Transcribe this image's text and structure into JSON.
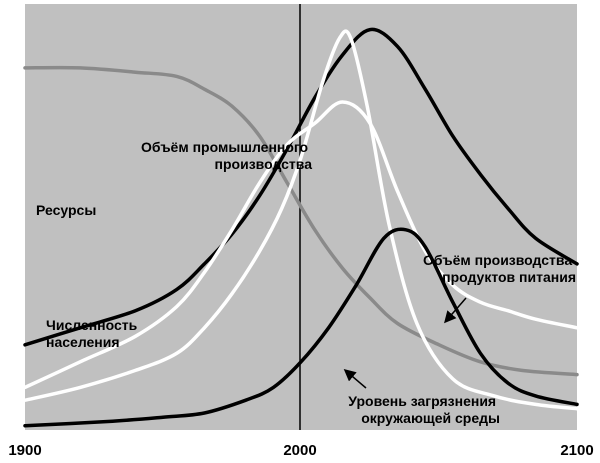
{
  "chart_data": {
    "type": "line",
    "title": "",
    "xlabel": "",
    "ylabel": "",
    "xlim": [
      1900,
      2100
    ],
    "ylim": [
      0,
      100
    ],
    "x_ticks": [
      "1900",
      "2000",
      "2100"
    ],
    "reference_line_x": 2000,
    "grid": false,
    "legend": "none",
    "background": "#c0c0c0",
    "series": [
      {
        "name": "Ресурсы",
        "color": "#8a8a8a",
        "x": [
          1900,
          1920,
          1940,
          1955,
          1965,
          1975,
          1985,
          1995,
          2005,
          2015,
          2025,
          2035,
          2050,
          2065,
          2080,
          2100
        ],
        "y": [
          85,
          85,
          84,
          83,
          80,
          76,
          69,
          58,
          47,
          38,
          31,
          25,
          20,
          16,
          14,
          13
        ]
      },
      {
        "name": "Численность населения",
        "color": "#000000",
        "x": [
          1900,
          1920,
          1940,
          1955,
          1965,
          1975,
          1985,
          1995,
          2005,
          2015,
          2025,
          2035,
          2045,
          2055,
          2065,
          2075,
          2085,
          2100
        ],
        "y": [
          20,
          24,
          28,
          33,
          39,
          46,
          55,
          66,
          78,
          88,
          94,
          90,
          80,
          69,
          60,
          52,
          45,
          39
        ]
      },
      {
        "name": "Объём производства продуктов питания",
        "color": "#ffffff",
        "x": [
          1900,
          1920,
          1940,
          1955,
          1965,
          1975,
          1985,
          1995,
          2005,
          2015,
          2025,
          2035,
          2045,
          2055,
          2065,
          2075,
          2085,
          2100
        ],
        "y": [
          10,
          16,
          22,
          29,
          37,
          47,
          58,
          67,
          72,
          77,
          72,
          56,
          42,
          34,
          30,
          28,
          26,
          24
        ]
      },
      {
        "name": "Объём промышленного производства",
        "color": "#ffffff",
        "x": [
          1900,
          1920,
          1940,
          1955,
          1965,
          1975,
          1985,
          1993,
          2000,
          2008,
          2014,
          2018,
          2024,
          2032,
          2042,
          2055,
          2070,
          2085,
          2100
        ],
        "y": [
          7,
          10,
          14,
          18,
          24,
          32,
          42,
          52,
          64,
          82,
          92,
          92,
          76,
          48,
          25,
          12,
          8,
          6,
          5
        ]
      },
      {
        "name": "Уровень загрязнения окружающей среды",
        "color": "#000000",
        "x": [
          1900,
          1930,
          1950,
          1965,
          1980,
          1990,
          2000,
          2010,
          2020,
          2030,
          2038,
          2045,
          2055,
          2065,
          2075,
          2085,
          2100
        ],
        "y": [
          1,
          2,
          3,
          4,
          7,
          10,
          16,
          24,
          34,
          45,
          47,
          43,
          30,
          18,
          11,
          8,
          6
        ]
      }
    ],
    "annotations": [
      {
        "id": "resources",
        "lines": [
          "Ресурсы"
        ]
      },
      {
        "id": "population",
        "lines": [
          "Численность",
          "населения"
        ]
      },
      {
        "id": "industry",
        "lines": [
          "Объём промышленного",
          "производства"
        ]
      },
      {
        "id": "food",
        "lines": [
          "Объём производства",
          "продуктов питания"
        ]
      },
      {
        "id": "pollution",
        "lines": [
          "Уровень загрязнения",
          "окружающей среды"
        ]
      }
    ]
  }
}
